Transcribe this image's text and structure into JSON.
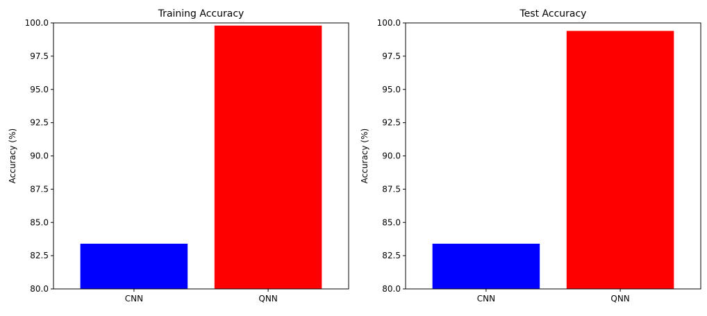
{
  "chart_data": [
    {
      "type": "bar",
      "title": "Training Accuracy",
      "xlabel": "",
      "ylabel": "Accuracy (%)",
      "categories": [
        "CNN",
        "QNN"
      ],
      "values": [
        83.4,
        99.8
      ],
      "colors": [
        "#0000ff",
        "#ff0000"
      ],
      "ylim": [
        80.0,
        100.0
      ],
      "yticks": [
        "80.0",
        "82.5",
        "85.0",
        "87.5",
        "90.0",
        "92.5",
        "95.0",
        "97.5",
        "100.0"
      ],
      "grid": false,
      "legend": "none"
    },
    {
      "type": "bar",
      "title": "Test Accuracy",
      "xlabel": "",
      "ylabel": "Accuracy (%)",
      "categories": [
        "CNN",
        "QNN"
      ],
      "values": [
        83.4,
        99.4
      ],
      "colors": [
        "#0000ff",
        "#ff0000"
      ],
      "ylim": [
        80.0,
        100.0
      ],
      "yticks": [
        "80.0",
        "82.5",
        "85.0",
        "87.5",
        "90.0",
        "92.5",
        "95.0",
        "97.5",
        "100.0"
      ],
      "grid": false,
      "legend": "none"
    }
  ]
}
